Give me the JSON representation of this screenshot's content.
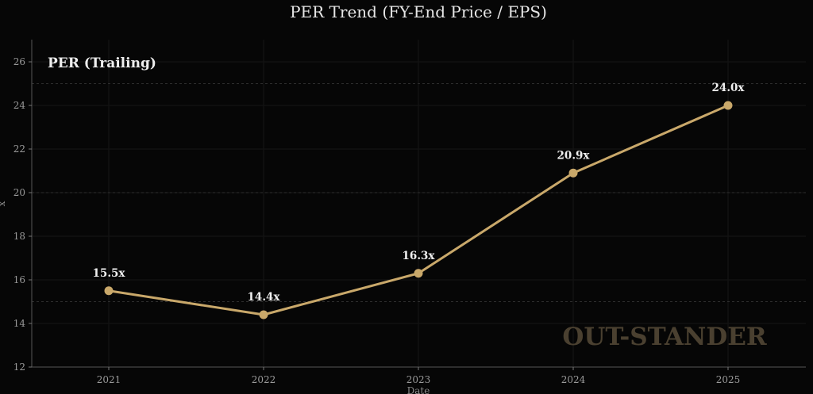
{
  "chart_data": {
    "type": "line",
    "title": "PER Trend (FY-End Price / EPS)",
    "xlabel": "Date",
    "ylabel": "x",
    "categories": [
      "2021",
      "2022",
      "2023",
      "2024",
      "2025"
    ],
    "series": [
      {
        "name": "PER (Trailing)",
        "values": [
          15.5,
          14.4,
          16.3,
          20.9,
          24.0
        ],
        "labels": [
          "15.5x",
          "14.4x",
          "16.3x",
          "20.9x",
          "24.0x"
        ],
        "color": "#c9a86a"
      }
    ],
    "ylim": [
      12,
      27
    ],
    "yticks": [
      12,
      14,
      16,
      18,
      20,
      22,
      24,
      26
    ],
    "reference_lines": [
      15,
      20,
      25
    ],
    "grid": true,
    "annotation": "PER (Trailing)",
    "watermark": "OUT-STANDER"
  },
  "colors": {
    "background": "#060606",
    "line": "#c9a86a",
    "watermark": "#4a4030"
  }
}
